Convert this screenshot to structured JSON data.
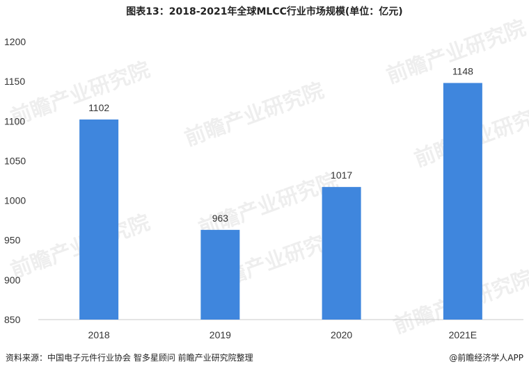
{
  "chart_data": {
    "type": "bar",
    "title": "图表13：2018-2021年全球MLCC行业市场规模(单位：亿元)",
    "categories": [
      "2018",
      "2019",
      "2020",
      "2021E"
    ],
    "values": [
      1102,
      963,
      1017,
      1148
    ],
    "ylim": [
      850,
      1200
    ],
    "yticks": [
      850,
      900,
      950,
      1000,
      1050,
      1100,
      1150,
      1200
    ],
    "xlabel": "",
    "ylabel": "",
    "grid": false,
    "bar_color": "#3f86dd"
  },
  "source": "资料来源：中国电子元件行业协会 智多星顾问 前瞻产业研究院整理",
  "brand": "@前瞻经济学人APP",
  "watermark": "前瞻产业研究院"
}
